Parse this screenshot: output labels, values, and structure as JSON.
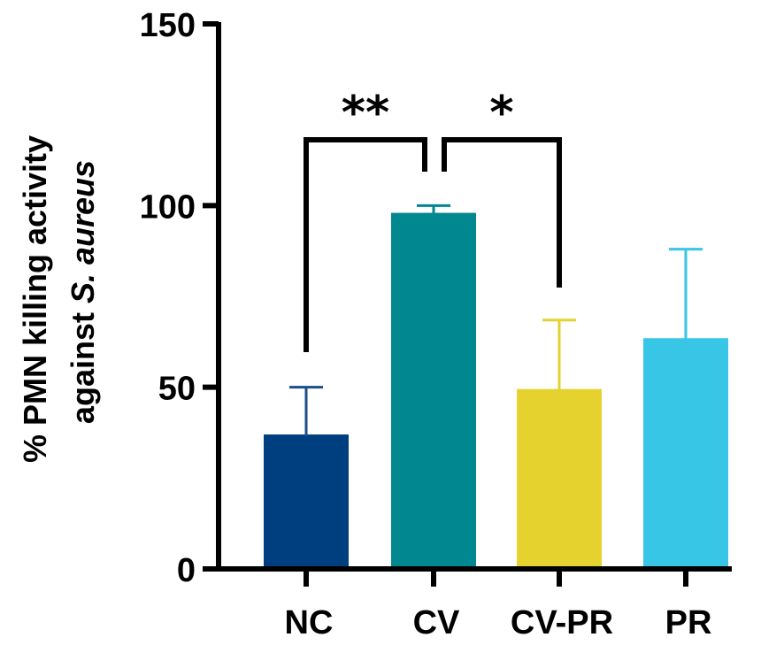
{
  "chart_data": {
    "type": "bar",
    "categories": [
      "NC",
      "CV",
      "CV-PR",
      "PR"
    ],
    "values": [
      37,
      98,
      49.5,
      63.5
    ],
    "error_upper": [
      50,
      100,
      68.5,
      88
    ],
    "colors": [
      "#003F7F",
      "#00878F",
      "#E5D22F",
      "#38C6E6"
    ],
    "title": "",
    "xlabel": "",
    "ylabel_line1": "% PMN killing activity",
    "ylabel_line2_prefix": "against ",
    "ylabel_line2_italic": "S. aureus",
    "ylim": [
      0,
      150
    ],
    "yticks": [
      0,
      50,
      100,
      150
    ],
    "significance": [
      {
        "from": 0,
        "to": 1,
        "label": "**"
      },
      {
        "from": 1,
        "to": 2,
        "label": "*"
      }
    ]
  }
}
